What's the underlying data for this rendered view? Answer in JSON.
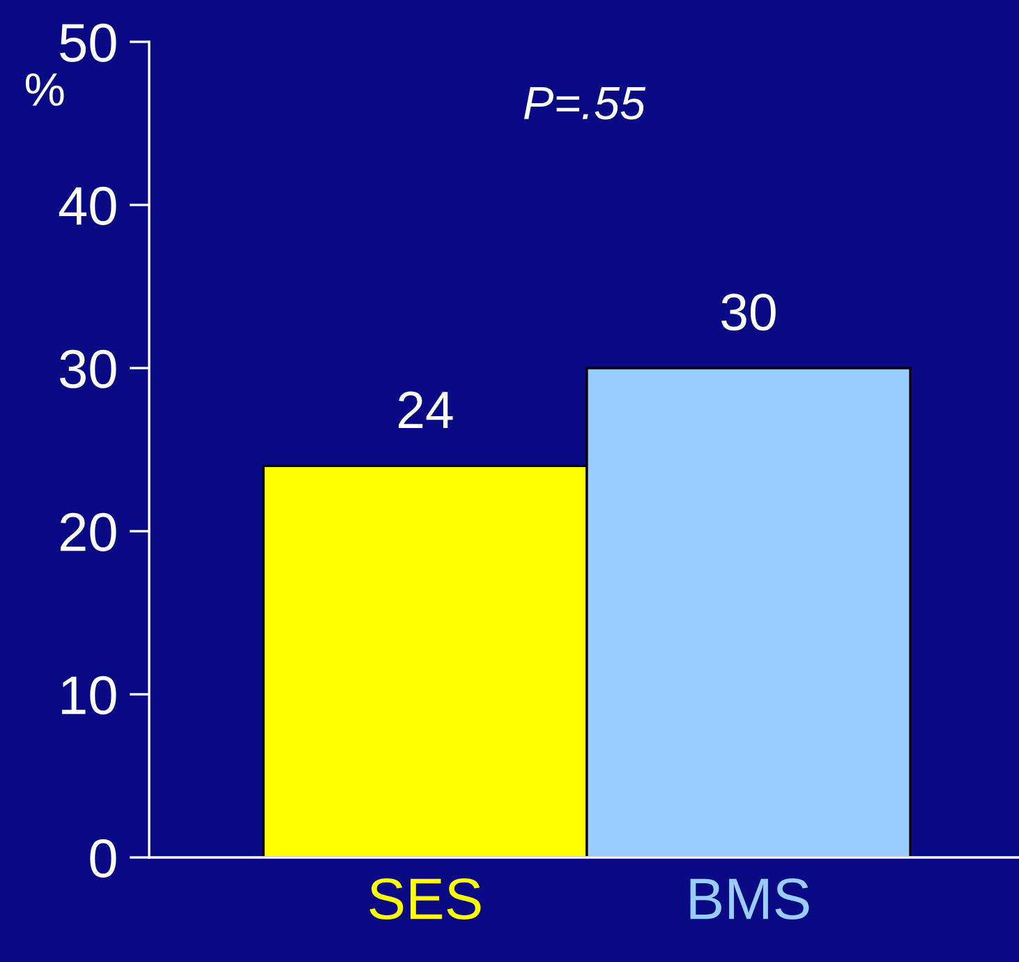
{
  "chart_data": {
    "type": "bar",
    "ylabel": "%",
    "categories": [
      "SES",
      "BMS"
    ],
    "values": [
      24,
      30
    ],
    "colors": [
      "#ffff00",
      "#99ccff"
    ],
    "ylim": [
      0,
      50
    ],
    "yticks": [
      0,
      10,
      20,
      30,
      40,
      50
    ],
    "data_labels": true,
    "annotations": [
      "P=.55"
    ],
    "grid": false,
    "legend": false
  }
}
